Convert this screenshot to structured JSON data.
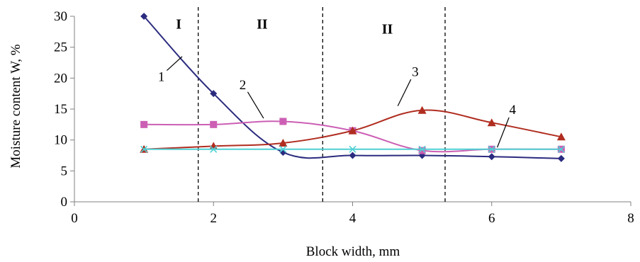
{
  "chart_data": {
    "type": "line",
    "title": "",
    "xlabel": "Block width, mm",
    "ylabel": "Moisture content W, %",
    "xlim": [
      0,
      8
    ],
    "ylim": [
      0,
      30
    ],
    "x_ticks": [
      0,
      2,
      4,
      6,
      8
    ],
    "y_ticks": [
      0,
      5,
      10,
      15,
      20,
      25,
      30
    ],
    "grid": false,
    "legend": "none",
    "series": [
      {
        "name": "1",
        "color": "#2b2b7f",
        "marker": "diamond",
        "x": [
          1,
          2,
          3,
          4,
          5,
          6,
          7
        ],
        "y": [
          30,
          17.5,
          8,
          7.5,
          7.5,
          7.3,
          7
        ]
      },
      {
        "name": "2",
        "color": "#cc5fb4",
        "marker": "square",
        "x": [
          1,
          2,
          3,
          4,
          5,
          6,
          7
        ],
        "y": [
          12.5,
          12.5,
          13,
          11.5,
          8.3,
          8.5,
          8.5
        ]
      },
      {
        "name": "3",
        "color": "#b02d20",
        "marker": "triangle",
        "x": [
          1,
          2,
          3,
          4,
          5,
          6,
          7
        ],
        "y": [
          8.5,
          9,
          9.5,
          11.5,
          14.8,
          12.8,
          10.5
        ]
      },
      {
        "name": "4",
        "color": "#4fd0d4",
        "marker": "x",
        "x": [
          1,
          2,
          3,
          4,
          5,
          6,
          7
        ],
        "y": [
          8.5,
          8.5,
          8.5,
          8.5,
          8.5,
          8.5,
          8.5
        ]
      }
    ],
    "boundaries": [
      1.78,
      3.57,
      5.33
    ],
    "regions": [
      {
        "label": "I",
        "x": 1.5,
        "y": 28
      },
      {
        "label": "II",
        "x": 2.7,
        "y": 28
      },
      {
        "label": "II",
        "x": 4.5,
        "y": 27.2
      }
    ],
    "annotations": [
      {
        "label": "1",
        "x": 1.25,
        "y": 19.5,
        "to_x": 1.55,
        "to_y": 23.5
      },
      {
        "label": "2",
        "x": 2.42,
        "y": 18.2,
        "to_x": 2.72,
        "to_y": 13.5
      },
      {
        "label": "3",
        "x": 4.9,
        "y": 20.3,
        "to_x": 4.65,
        "to_y": 15.5
      },
      {
        "label": "4",
        "x": 6.3,
        "y": 14.2,
        "to_x": 6.08,
        "to_y": 8.8
      }
    ]
  }
}
